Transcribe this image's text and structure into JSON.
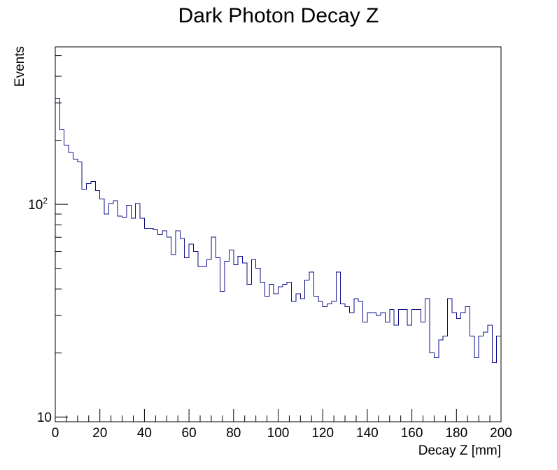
{
  "chart_data": {
    "type": "histogram",
    "title": "Dark Photon Decay Z",
    "xlabel": "Decay Z [mm]",
    "ylabel": "Events",
    "xlim": [
      0,
      200
    ],
    "ylim": [
      9.5,
      550
    ],
    "yscale": "log",
    "grid": false,
    "x_ticks": [
      "0",
      "20",
      "40",
      "60",
      "80",
      "100",
      "120",
      "140",
      "160",
      "180",
      "200"
    ],
    "x_tick_values": [
      0,
      20,
      40,
      60,
      80,
      100,
      120,
      140,
      160,
      180,
      200
    ],
    "y_tick_labels": [
      {
        "value": 10,
        "base": "10",
        "exp": ""
      },
      {
        "value": 100,
        "base": "10",
        "exp": "2"
      }
    ],
    "bin_width": 2,
    "x_start": 0,
    "values": [
      315,
      224,
      190,
      175,
      163,
      158,
      118,
      125,
      128,
      116,
      106,
      90,
      101,
      104,
      88,
      87,
      99,
      86,
      101,
      86,
      77,
      77,
      76,
      72,
      75,
      70,
      58,
      75,
      69,
      56,
      65,
      60,
      51,
      51,
      55,
      70,
      56,
      39,
      54,
      61,
      52,
      57,
      53,
      42,
      55,
      50,
      43,
      37,
      42,
      38,
      41,
      42,
      43,
      35,
      38,
      36,
      44,
      48,
      37,
      35,
      33,
      34,
      35,
      48,
      34,
      33,
      31,
      36,
      35,
      28,
      31,
      31,
      30,
      31,
      28,
      32,
      27,
      32,
      32,
      27,
      32,
      32,
      28,
      36,
      20,
      19,
      23,
      24,
      36,
      31,
      29,
      31,
      33,
      24,
      19,
      24,
      25,
      27,
      18,
      24
    ]
  }
}
